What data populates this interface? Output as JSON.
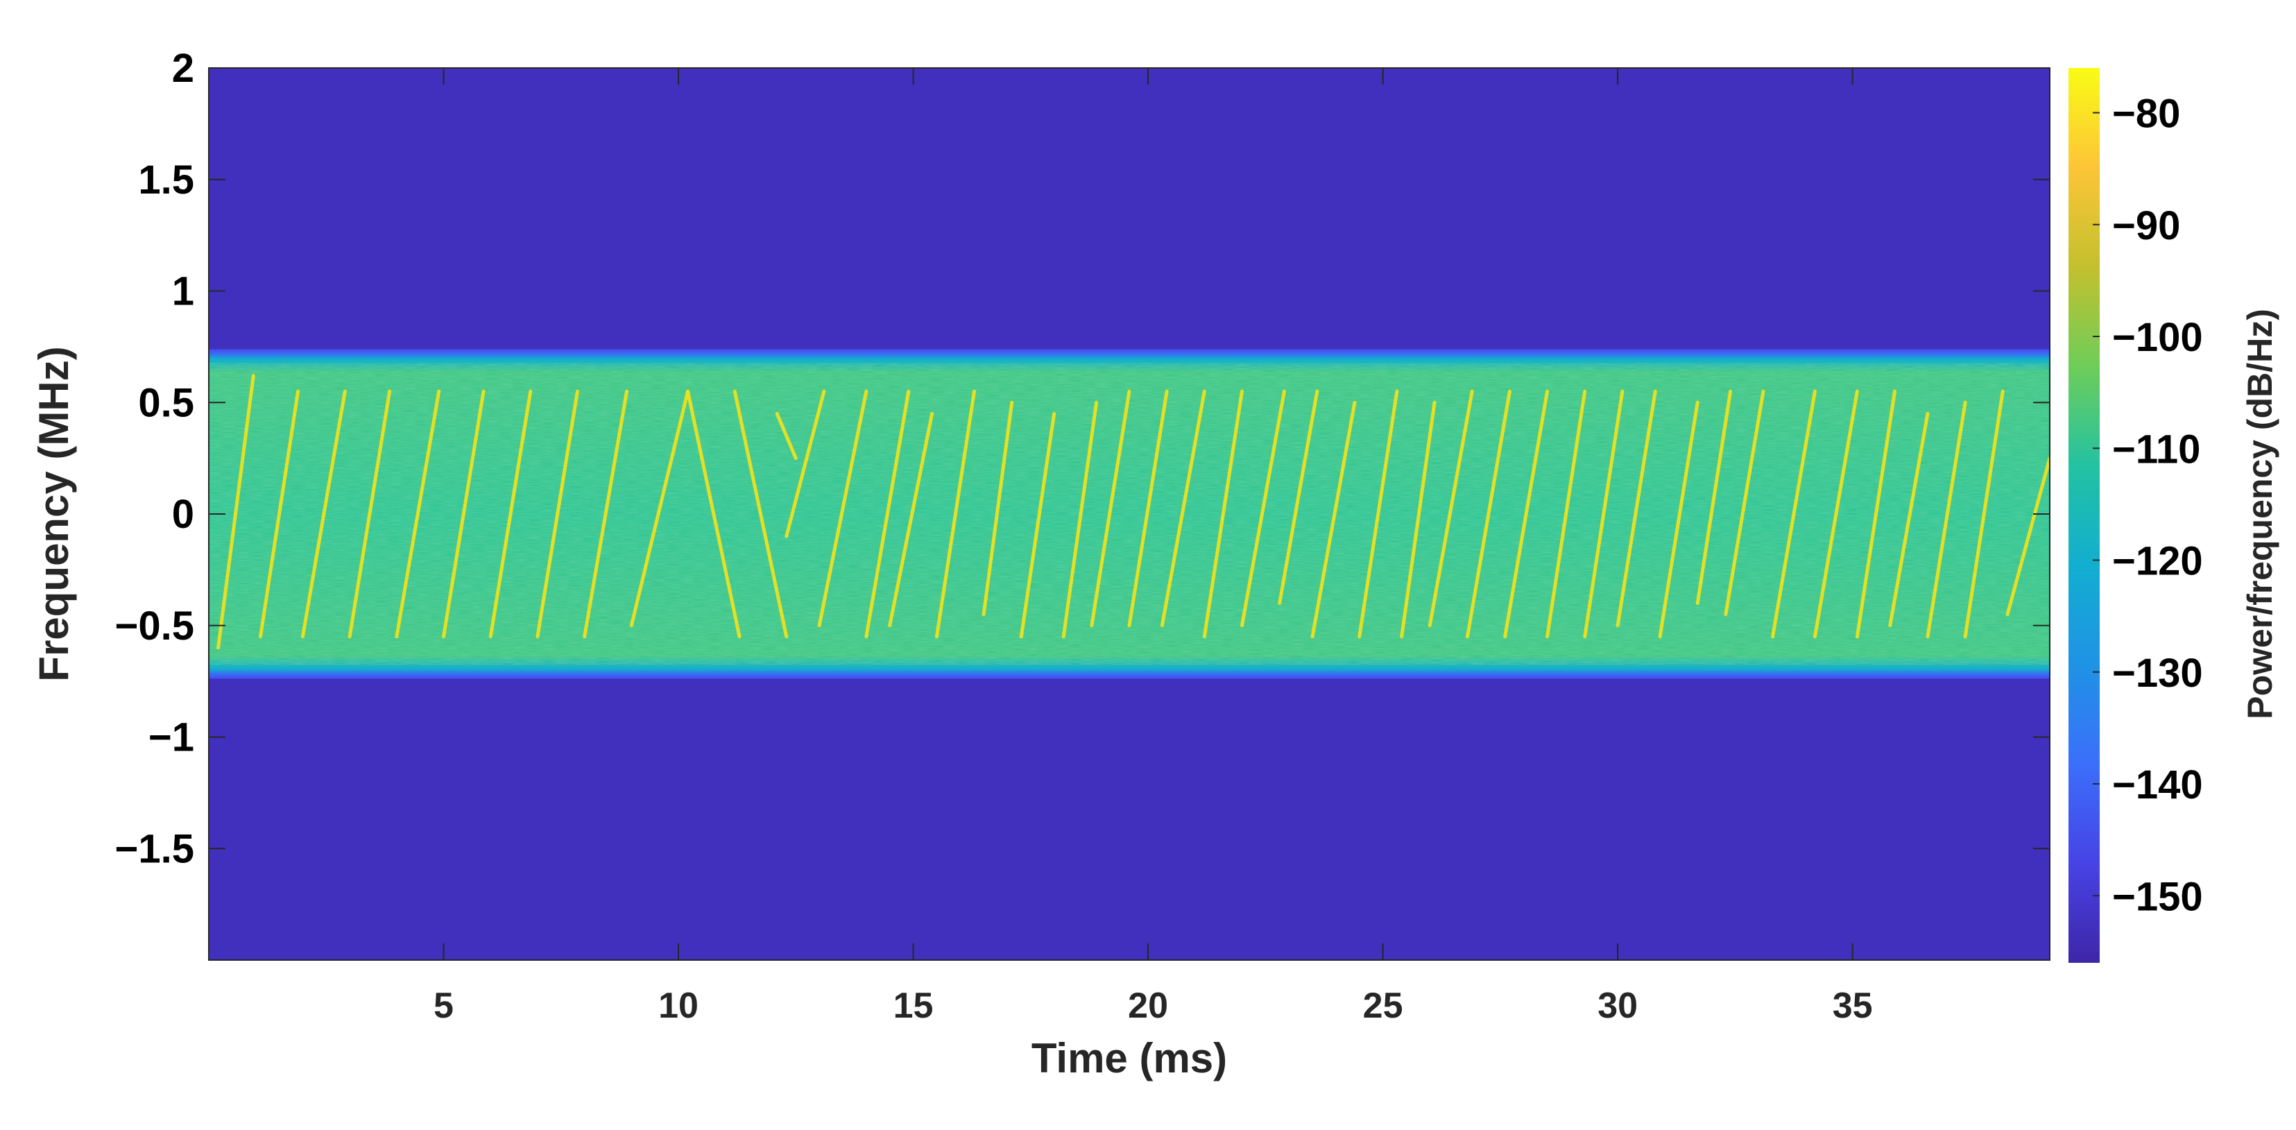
{
  "chart_data": {
    "type": "heatmap",
    "title": "",
    "xlabel": "Time (ms)",
    "ylabel": "Frequency (MHz)",
    "colorbar_label": "Power/frequency (dB/Hz)",
    "xlim": [
      0,
      39.2
    ],
    "ylim": [
      -2,
      2
    ],
    "x_ticks": [
      5,
      10,
      15,
      20,
      25,
      30,
      35
    ],
    "x_tick_labels": [
      "5",
      "10",
      "15",
      "20",
      "25",
      "30",
      "35"
    ],
    "y_ticks": [
      2,
      1.5,
      1,
      0.5,
      0,
      -0.5,
      -1,
      -1.5
    ],
    "y_tick_labels": [
      "2",
      "1.5",
      "1",
      "0.5",
      "0",
      "−0.5",
      "−1",
      "−1.5"
    ],
    "clim": [
      -156,
      -76
    ],
    "colorbar_ticks": [
      -80,
      -90,
      -100,
      -110,
      -120,
      -130,
      -140,
      -150
    ],
    "colorbar_tick_labels": [
      "−80",
      "−90",
      "−100",
      "−110",
      "−120",
      "−130",
      "−140",
      "−150"
    ],
    "colormap": "parula",
    "colormap_stops": [
      "#3e26a8",
      "#4743e5",
      "#3b6ffb",
      "#1f93e4",
      "#12aed0",
      "#23c2a2",
      "#6ecd59",
      "#c4c02d",
      "#fcc538",
      "#f9fb15"
    ],
    "background_level_db": -153,
    "band": {
      "f_min_mhz": -0.72,
      "f_max_mhz": 0.72,
      "level_db": -110
    },
    "chirps": [
      {
        "t_start": 0.2,
        "t_end": 0.95,
        "f_start": -0.6,
        "f_end": 0.62
      },
      {
        "t_start": 1.1,
        "t_end": 1.9,
        "f_start": -0.55,
        "f_end": 0.55
      },
      {
        "t_start": 2.0,
        "t_end": 2.9,
        "f_start": -0.55,
        "f_end": 0.55
      },
      {
        "t_start": 3.0,
        "t_end": 3.85,
        "f_start": -0.55,
        "f_end": 0.55
      },
      {
        "t_start": 4.0,
        "t_end": 4.9,
        "f_start": -0.55,
        "f_end": 0.55
      },
      {
        "t_start": 5.0,
        "t_end": 5.85,
        "f_start": -0.55,
        "f_end": 0.55
      },
      {
        "t_start": 6.0,
        "t_end": 6.85,
        "f_start": -0.55,
        "f_end": 0.55
      },
      {
        "t_start": 7.0,
        "t_end": 7.85,
        "f_start": -0.55,
        "f_end": 0.55
      },
      {
        "t_start": 8.0,
        "t_end": 8.9,
        "f_start": -0.55,
        "f_end": 0.55
      },
      {
        "t_start": 9.0,
        "t_end": 10.2,
        "f_start": -0.5,
        "f_end": 0.55
      },
      {
        "t_start": 10.2,
        "t_end": 11.3,
        "f_start": 0.55,
        "f_end": -0.55
      },
      {
        "t_start": 11.2,
        "t_end": 12.3,
        "f_start": 0.55,
        "f_end": -0.55
      },
      {
        "t_start": 12.1,
        "t_end": 12.5,
        "f_start": 0.45,
        "f_end": 0.25
      },
      {
        "t_start": 12.3,
        "t_end": 13.1,
        "f_start": -0.1,
        "f_end": 0.55
      },
      {
        "t_start": 13.0,
        "t_end": 14.0,
        "f_start": -0.5,
        "f_end": 0.55
      },
      {
        "t_start": 14.0,
        "t_end": 14.9,
        "f_start": -0.55,
        "f_end": 0.55
      },
      {
        "t_start": 14.5,
        "t_end": 15.4,
        "f_start": -0.5,
        "f_end": 0.45
      },
      {
        "t_start": 15.5,
        "t_end": 16.3,
        "f_start": -0.55,
        "f_end": 0.55
      },
      {
        "t_start": 16.5,
        "t_end": 17.1,
        "f_start": -0.45,
        "f_end": 0.5
      },
      {
        "t_start": 17.3,
        "t_end": 18.0,
        "f_start": -0.55,
        "f_end": 0.45
      },
      {
        "t_start": 18.2,
        "t_end": 18.9,
        "f_start": -0.55,
        "f_end": 0.5
      },
      {
        "t_start": 18.8,
        "t_end": 19.6,
        "f_start": -0.5,
        "f_end": 0.55
      },
      {
        "t_start": 19.6,
        "t_end": 20.4,
        "f_start": -0.5,
        "f_end": 0.55
      },
      {
        "t_start": 20.3,
        "t_end": 21.2,
        "f_start": -0.5,
        "f_end": 0.55
      },
      {
        "t_start": 21.2,
        "t_end": 22.0,
        "f_start": -0.55,
        "f_end": 0.55
      },
      {
        "t_start": 22.0,
        "t_end": 22.9,
        "f_start": -0.5,
        "f_end": 0.55
      },
      {
        "t_start": 22.8,
        "t_end": 23.6,
        "f_start": -0.4,
        "f_end": 0.55
      },
      {
        "t_start": 23.5,
        "t_end": 24.4,
        "f_start": -0.55,
        "f_end": 0.5
      },
      {
        "t_start": 24.5,
        "t_end": 25.3,
        "f_start": -0.55,
        "f_end": 0.55
      },
      {
        "t_start": 25.4,
        "t_end": 26.1,
        "f_start": -0.55,
        "f_end": 0.5
      },
      {
        "t_start": 26.0,
        "t_end": 26.9,
        "f_start": -0.5,
        "f_end": 0.55
      },
      {
        "t_start": 26.8,
        "t_end": 27.7,
        "f_start": -0.55,
        "f_end": 0.55
      },
      {
        "t_start": 27.6,
        "t_end": 28.5,
        "f_start": -0.55,
        "f_end": 0.55
      },
      {
        "t_start": 28.5,
        "t_end": 29.3,
        "f_start": -0.55,
        "f_end": 0.55
      },
      {
        "t_start": 29.3,
        "t_end": 30.1,
        "f_start": -0.55,
        "f_end": 0.55
      },
      {
        "t_start": 30.0,
        "t_end": 30.8,
        "f_start": -0.5,
        "f_end": 0.55
      },
      {
        "t_start": 30.9,
        "t_end": 31.7,
        "f_start": -0.55,
        "f_end": 0.5
      },
      {
        "t_start": 31.7,
        "t_end": 32.4,
        "f_start": -0.4,
        "f_end": 0.55
      },
      {
        "t_start": 32.3,
        "t_end": 33.1,
        "f_start": -0.45,
        "f_end": 0.55
      },
      {
        "t_start": 33.3,
        "t_end": 34.2,
        "f_start": -0.55,
        "f_end": 0.55
      },
      {
        "t_start": 34.2,
        "t_end": 35.1,
        "f_start": -0.55,
        "f_end": 0.55
      },
      {
        "t_start": 35.1,
        "t_end": 35.9,
        "f_start": -0.55,
        "f_end": 0.55
      },
      {
        "t_start": 35.8,
        "t_end": 36.6,
        "f_start": -0.5,
        "f_end": 0.45
      },
      {
        "t_start": 36.6,
        "t_end": 37.4,
        "f_start": -0.55,
        "f_end": 0.5
      },
      {
        "t_start": 37.4,
        "t_end": 38.2,
        "f_start": -0.55,
        "f_end": 0.55
      },
      {
        "t_start": 38.3,
        "t_end": 39.2,
        "f_start": -0.45,
        "f_end": 0.25
      }
    ]
  }
}
